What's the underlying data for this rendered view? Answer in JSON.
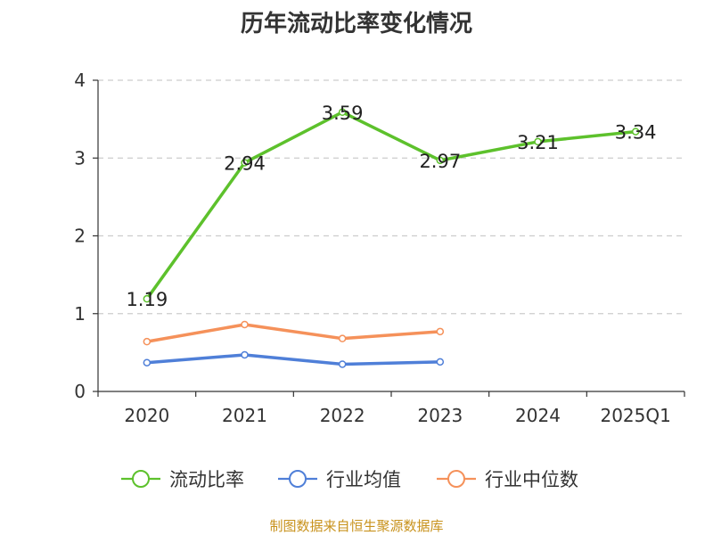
{
  "page": {
    "title": "历年流动比率变化情况",
    "source": "制图数据来自恒生聚源数据库"
  },
  "chart_data": {
    "type": "line",
    "title": "历年流动比率变化情况",
    "xlabel": "",
    "ylabel": "",
    "categories": [
      "2020",
      "2021",
      "2022",
      "2023",
      "2024",
      "2025Q1"
    ],
    "ylim": [
      0,
      4
    ],
    "yticks": [
      "0",
      "1",
      "2",
      "3",
      "4"
    ],
    "grid": true,
    "legend_position": "bottom",
    "series": [
      {
        "name": "流动比率",
        "color": "#5dc12c",
        "show_labels": true,
        "values": [
          1.19,
          2.94,
          3.59,
          2.97,
          3.21,
          3.34
        ],
        "labels": [
          "1.19",
          "2.94",
          "3.59",
          "2.97",
          "3.21",
          "3.34"
        ]
      },
      {
        "name": "行业均值",
        "color": "#4f7fd8",
        "show_labels": false,
        "values": [
          0.37,
          0.47,
          0.35,
          0.38,
          null,
          null
        ]
      },
      {
        "name": "行业中位数",
        "color": "#f5915a",
        "show_labels": false,
        "values": [
          0.64,
          0.86,
          0.68,
          0.77,
          null,
          null
        ]
      }
    ]
  }
}
